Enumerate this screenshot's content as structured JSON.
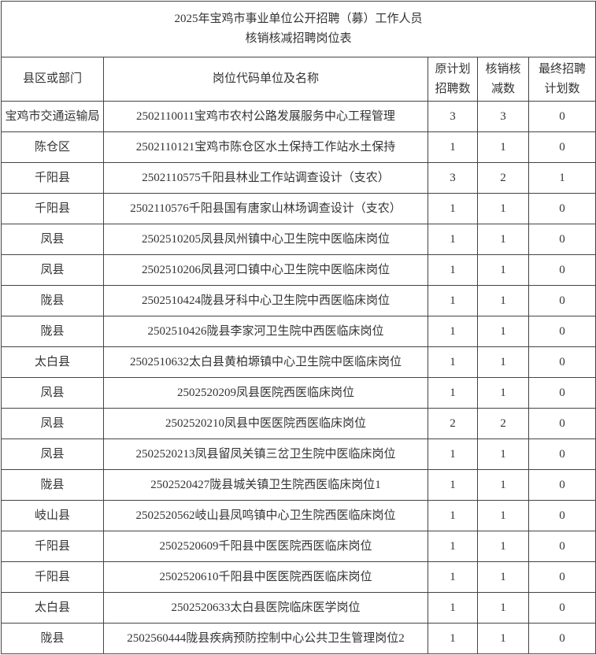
{
  "title": {
    "line1": "2025年宝鸡市事业单位公开招聘（募）工作人员",
    "line2": "核销核减招聘岗位表"
  },
  "headers": {
    "county": "县区或部门",
    "position": "岗位代码单位及名称",
    "original_1": "原计划",
    "original_2": "招聘数",
    "cancel_1": "核销核",
    "cancel_2": "减数",
    "final_1": "最终招聘",
    "final_2": "计划数"
  },
  "rows": [
    {
      "county": "宝鸡市交通运输局",
      "position": "2502110011宝鸡市农村公路发展服务中心工程管理",
      "original": "3",
      "cancel": "3",
      "final": "0"
    },
    {
      "county": "陈仓区",
      "position": "2502110121宝鸡市陈仓区水土保持工作站水土保持",
      "original": "1",
      "cancel": "1",
      "final": "0"
    },
    {
      "county": "千阳县",
      "position": "2502110575千阳县林业工作站调查设计（支农）",
      "original": "3",
      "cancel": "2",
      "final": "1"
    },
    {
      "county": "千阳县",
      "position": "2502110576千阳县国有唐家山林场调查设计（支农）",
      "original": "1",
      "cancel": "1",
      "final": "0"
    },
    {
      "county": "凤县",
      "position": "2502510205凤县凤州镇中心卫生院中医临床岗位",
      "original": "1",
      "cancel": "1",
      "final": "0"
    },
    {
      "county": "凤县",
      "position": "2502510206凤县河口镇中心卫生院中医临床岗位",
      "original": "1",
      "cancel": "1",
      "final": "0"
    },
    {
      "county": "陇县",
      "position": "2502510424陇县牙科中心卫生院中西医临床岗位",
      "original": "1",
      "cancel": "1",
      "final": "0"
    },
    {
      "county": "陇县",
      "position": "2502510426陇县李家河卫生院中西医临床岗位",
      "original": "1",
      "cancel": "1",
      "final": "0"
    },
    {
      "county": "太白县",
      "position": "2502510632太白县黄柏塬镇中心卫生院中医临床岗位",
      "original": "1",
      "cancel": "1",
      "final": "0"
    },
    {
      "county": "凤县",
      "position": "2502520209凤县医院西医临床岗位",
      "original": "1",
      "cancel": "1",
      "final": "0"
    },
    {
      "county": "凤县",
      "position": "2502520210凤县中医医院西医临床岗位",
      "original": "2",
      "cancel": "2",
      "final": "0"
    },
    {
      "county": "凤县",
      "position": "2502520213凤县留凤关镇三岔卫生院中医临床岗位",
      "original": "1",
      "cancel": "1",
      "final": "0"
    },
    {
      "county": "陇县",
      "position": "2502520427陇县城关镇卫生院西医临床岗位1",
      "original": "1",
      "cancel": "1",
      "final": "0"
    },
    {
      "county": "岐山县",
      "position": "2502520562岐山县凤鸣镇中心卫生院西医临床岗位",
      "original": "1",
      "cancel": "1",
      "final": "0"
    },
    {
      "county": "千阳县",
      "position": "2502520609千阳县中医医院西医临床岗位",
      "original": "1",
      "cancel": "1",
      "final": "0"
    },
    {
      "county": "千阳县",
      "position": "2502520610千阳县中医医院西医临床岗位",
      "original": "1",
      "cancel": "1",
      "final": "0"
    },
    {
      "county": "太白县",
      "position": "2502520633太白县医院临床医学岗位",
      "original": "1",
      "cancel": "1",
      "final": "0"
    },
    {
      "county": "陇县",
      "position": "2502560444陇县疾病预防控制中心公共卫生管理岗位2",
      "original": "1",
      "cancel": "1",
      "final": "0"
    }
  ]
}
